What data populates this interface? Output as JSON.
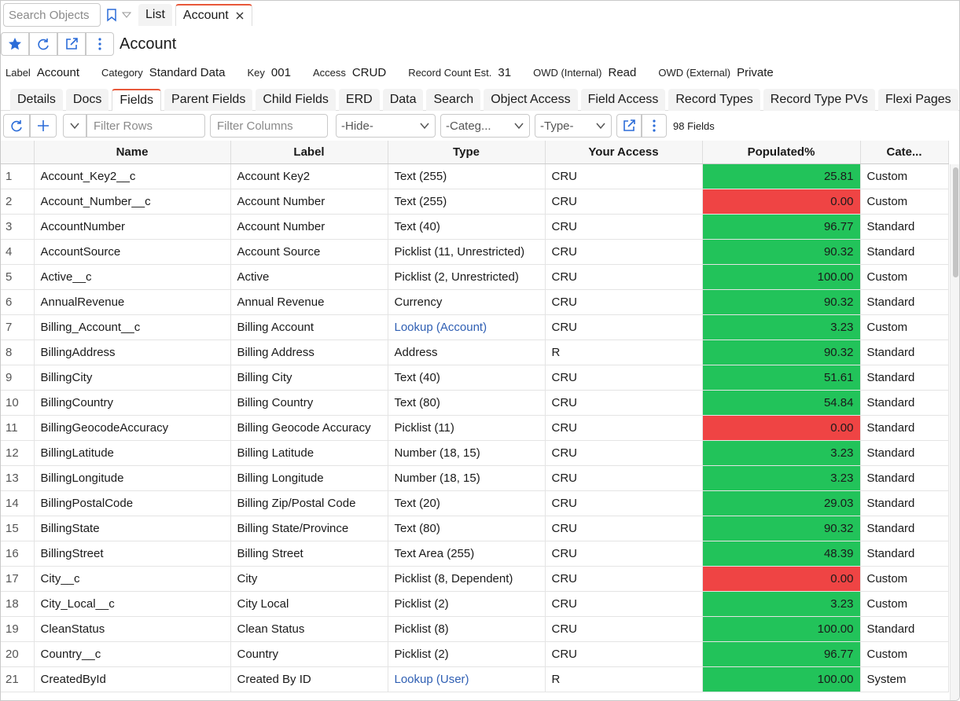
{
  "toolbar": {
    "search_placeholder": "Search Objects",
    "tabs": [
      "List",
      "Account"
    ],
    "active_tab": "Account"
  },
  "header": {
    "title": "Account"
  },
  "meta": [
    {
      "label": "Label",
      "value": "Account"
    },
    {
      "label": "Category",
      "value": "Standard Data"
    },
    {
      "label": "Key",
      "value": "001"
    },
    {
      "label": "Access",
      "value": "CRUD"
    },
    {
      "label": "Record Count Est.",
      "value": "31"
    },
    {
      "label": "OWD (Internal)",
      "value": "Read"
    },
    {
      "label": "OWD (External)",
      "value": "Private"
    }
  ],
  "subtabs": [
    "Details",
    "Docs",
    "Fields",
    "Parent Fields",
    "Child Fields",
    "ERD",
    "Data",
    "Search",
    "Object Access",
    "Field Access",
    "Record Types",
    "Record Type PVs",
    "Flexi Pages"
  ],
  "active_subtab": "Fields",
  "filters": {
    "rows_placeholder": "Filter Rows",
    "columns_placeholder": "Filter Columns",
    "selects": [
      "-Hide-",
      "-Categ...",
      "-Type-"
    ],
    "count": "98 Fields"
  },
  "table": {
    "columns": [
      "Name",
      "Label",
      "Type",
      "Your Access",
      "Populated%",
      "Cate..."
    ],
    "rows": [
      [
        "1",
        "Account_Key2__c",
        "Account Key2",
        "Text (255)",
        "CRU",
        "25.81",
        "Custom"
      ],
      [
        "2",
        "Account_Number__c",
        "Account Number",
        "Text (255)",
        "CRU",
        "0.00",
        "Custom"
      ],
      [
        "3",
        "AccountNumber",
        "Account Number",
        "Text (40)",
        "CRU",
        "96.77",
        "Standard"
      ],
      [
        "4",
        "AccountSource",
        "Account Source",
        "Picklist (11, Unrestricted)",
        "CRU",
        "90.32",
        "Standard"
      ],
      [
        "5",
        "Active__c",
        "Active",
        "Picklist (2, Unrestricted)",
        "CRU",
        "100.00",
        "Custom"
      ],
      [
        "6",
        "AnnualRevenue",
        "Annual Revenue",
        "Currency",
        "CRU",
        "90.32",
        "Standard"
      ],
      [
        "7",
        "Billing_Account__c",
        "Billing Account",
        "Lookup (Account)",
        "CRU",
        "3.23",
        "Custom"
      ],
      [
        "8",
        "BillingAddress",
        "Billing Address",
        "Address",
        "R",
        "90.32",
        "Standard"
      ],
      [
        "9",
        "BillingCity",
        "Billing City",
        "Text (40)",
        "CRU",
        "51.61",
        "Standard"
      ],
      [
        "10",
        "BillingCountry",
        "Billing Country",
        "Text (80)",
        "CRU",
        "54.84",
        "Standard"
      ],
      [
        "11",
        "BillingGeocodeAccuracy",
        "Billing Geocode Accuracy",
        "Picklist (11)",
        "CRU",
        "0.00",
        "Standard"
      ],
      [
        "12",
        "BillingLatitude",
        "Billing Latitude",
        "Number (18, 15)",
        "CRU",
        "3.23",
        "Standard"
      ],
      [
        "13",
        "BillingLongitude",
        "Billing Longitude",
        "Number (18, 15)",
        "CRU",
        "3.23",
        "Standard"
      ],
      [
        "14",
        "BillingPostalCode",
        "Billing Zip/Postal Code",
        "Text (20)",
        "CRU",
        "29.03",
        "Standard"
      ],
      [
        "15",
        "BillingState",
        "Billing State/Province",
        "Text (80)",
        "CRU",
        "90.32",
        "Standard"
      ],
      [
        "16",
        "BillingStreet",
        "Billing Street",
        "Text Area (255)",
        "CRU",
        "48.39",
        "Standard"
      ],
      [
        "17",
        "City__c",
        "City",
        "Picklist (8, Dependent)",
        "CRU",
        "0.00",
        "Custom"
      ],
      [
        "18",
        "City_Local__c",
        "City Local",
        "Picklist (2)",
        "CRU",
        "3.23",
        "Custom"
      ],
      [
        "19",
        "CleanStatus",
        "Clean Status",
        "Picklist (8)",
        "CRU",
        "100.00",
        "Standard"
      ],
      [
        "20",
        "Country__c",
        "Country",
        "Picklist (2)",
        "CRU",
        "96.77",
        "Custom"
      ],
      [
        "21",
        "CreatedById",
        "Created By ID",
        "Lookup (User)",
        "R",
        "100.00",
        "System"
      ]
    ]
  }
}
